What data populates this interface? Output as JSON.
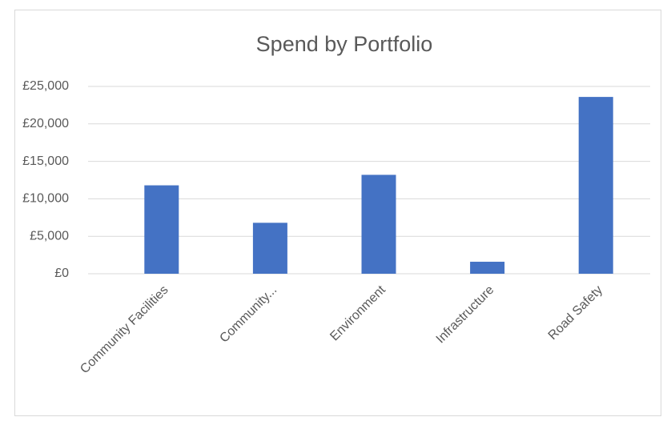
{
  "chart_data": {
    "type": "bar",
    "title": "Spend by Portfolio",
    "categories": [
      "Community Facilities",
      "Community...",
      "Environment",
      "Infrastructure",
      "Road Safety"
    ],
    "values": [
      11800,
      6800,
      13200,
      1600,
      23600
    ],
    "color": "#4472c4",
    "ylim": [
      0,
      25000
    ],
    "yticks": [
      {
        "value": 0,
        "label": "£0"
      },
      {
        "value": 5000,
        "label": "£5,000"
      },
      {
        "value": 10000,
        "label": "£10,000"
      },
      {
        "value": 15000,
        "label": "£15,000"
      },
      {
        "value": 20000,
        "label": "£20,000"
      },
      {
        "value": 25000,
        "label": "£25,000"
      }
    ],
    "grid": true
  }
}
